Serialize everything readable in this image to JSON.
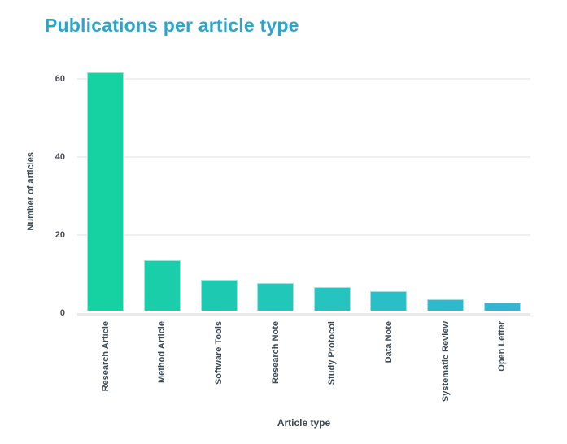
{
  "chart_data": {
    "type": "bar",
    "title": "Publications per article type",
    "categories": [
      "Research Article",
      "Method Article",
      "Software Tools",
      "Research Note",
      "Study Protocol",
      "Data Note",
      "Systematic Review",
      "Open Letter"
    ],
    "values": [
      61,
      13,
      8,
      7,
      6,
      5,
      3,
      2
    ],
    "xlabel": "Article type",
    "ylabel": "Number of articles",
    "ylim": [
      0,
      62.5
    ],
    "yticks": [
      0,
      20,
      40,
      60
    ],
    "grid": true,
    "legend": false,
    "bar_colors": [
      "#16d1a1",
      "#19cea9",
      "#1dcab1",
      "#21c7b8",
      "#26c3bf",
      "#2abfc6",
      "#2ebacd",
      "#33b6d3"
    ]
  },
  "colors": {
    "title": "#2ca4cb",
    "axis_title": "#3c4a56",
    "tick_label": "#4c4c55",
    "gridline": "#efefef"
  }
}
